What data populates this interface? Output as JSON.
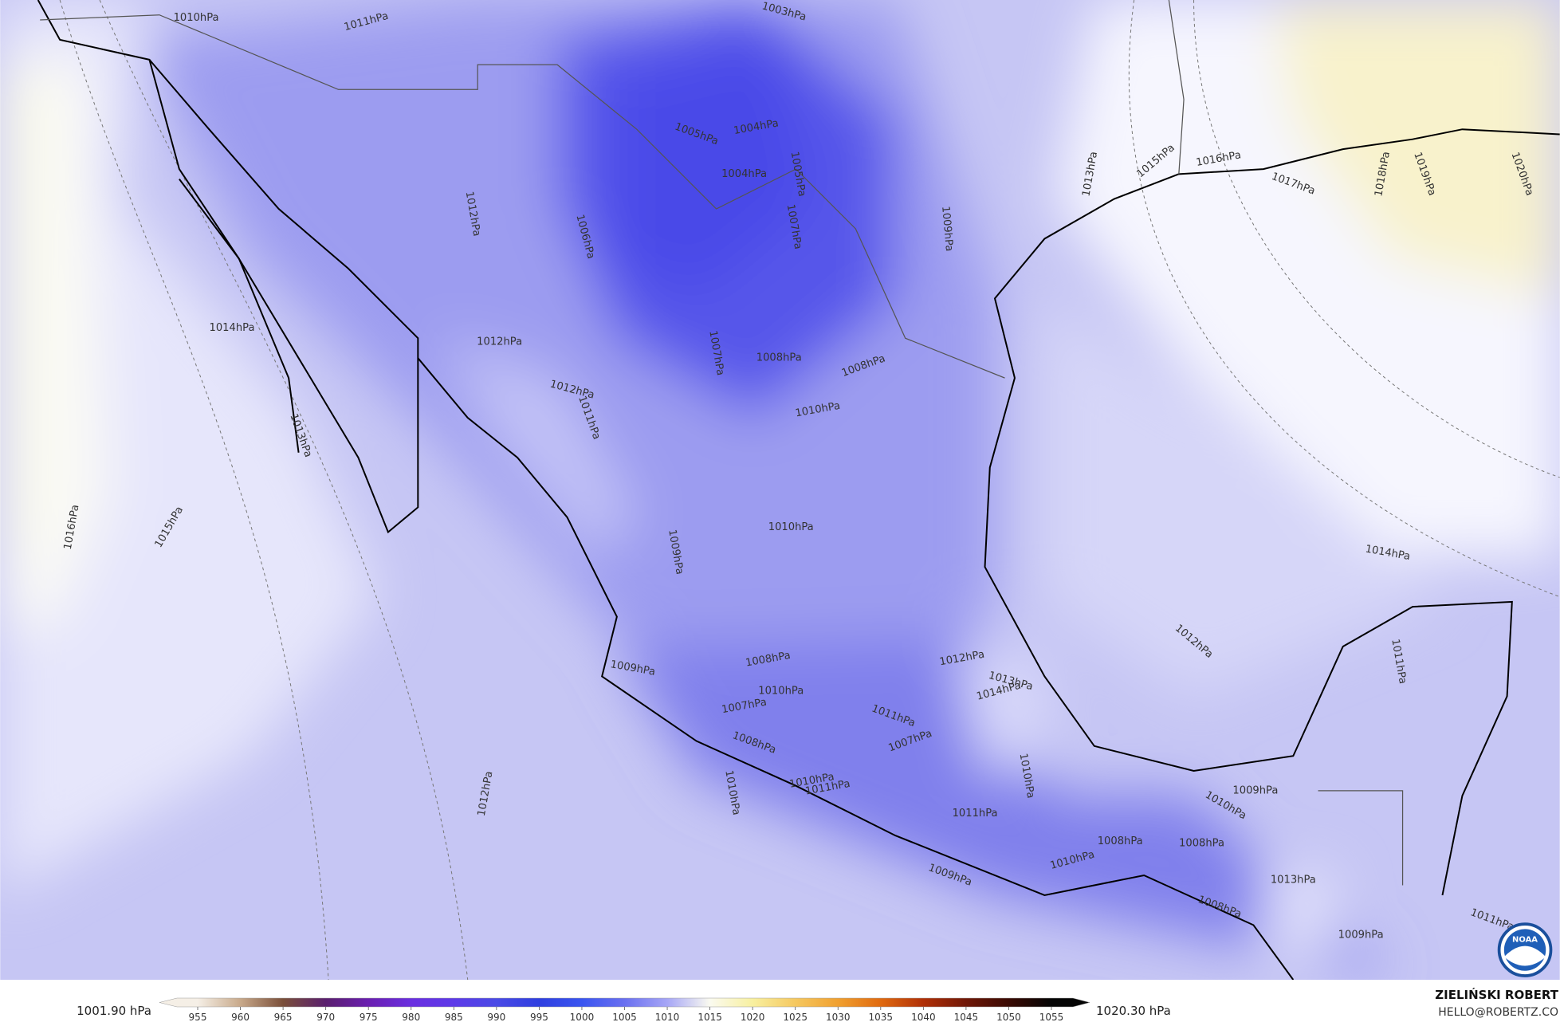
{
  "map": {
    "contour_labels": [
      "1010hPa",
      "1011hPa",
      "1003hPa",
      "1005hPa",
      "1004hPa",
      "1004hPa",
      "1005hPa",
      "1006hPa",
      "1007hPa",
      "1012hPa",
      "1009hPa",
      "1013hPa",
      "1015hPa",
      "1016hPa",
      "1017hPa",
      "1018hPa",
      "1019hPa",
      "1020hPa",
      "1014hPa",
      "1013hPa",
      "1016hPa",
      "1015hPa",
      "1012hPa",
      "1012hPa",
      "1011hPa",
      "1007hPa",
      "1008hPa",
      "1008hPa",
      "1010hPa",
      "1009hPa",
      "1010hPa",
      "1014hPa",
      "1012hPa",
      "1011hPa",
      "1009hPa",
      "1008hPa",
      "1012hPa",
      "1013hPa",
      "1014hPa",
      "1010hPa",
      "1007hPa",
      "1011hPa",
      "1007hPa",
      "1008hPa",
      "1010hPa",
      "1010hPa",
      "1011hPa",
      "1010hPa",
      "1012hPa",
      "1011hPa",
      "1009hPa",
      "1010hPa",
      "1008hPa",
      "1008hPa",
      "1010hPa",
      "1009hPa",
      "1008hPa",
      "1013hPa",
      "1009hPa",
      "1011hPa"
    ],
    "logo": "NOAA"
  },
  "colorbar": {
    "min_label": "1001.90 hPa",
    "max_label": "1020.30 hPa",
    "ticks": [
      955,
      960,
      965,
      970,
      975,
      980,
      985,
      990,
      995,
      1000,
      1005,
      1010,
      1015,
      1020,
      1025,
      1030,
      1035,
      1040,
      1045,
      1050,
      1055
    ],
    "colors": [
      "#f5efe6",
      "#c8a98a",
      "#7a4f3a",
      "#5a1f6e",
      "#6a1fb0",
      "#6a2fe0",
      "#5d3ae8",
      "#4a4ae6",
      "#2f3fe0",
      "#3a55f0",
      "#6a70f0",
      "#a6a6f6",
      "#fafaf0",
      "#f8f0a0",
      "#f5c860",
      "#f0a030",
      "#e06a10",
      "#b03008",
      "#701808",
      "#3a0a04",
      "#050505"
    ]
  },
  "credits": {
    "author": "ZIELIŃSKI ROBERT",
    "contact": "HELLO@ROBERTZ.CO"
  }
}
